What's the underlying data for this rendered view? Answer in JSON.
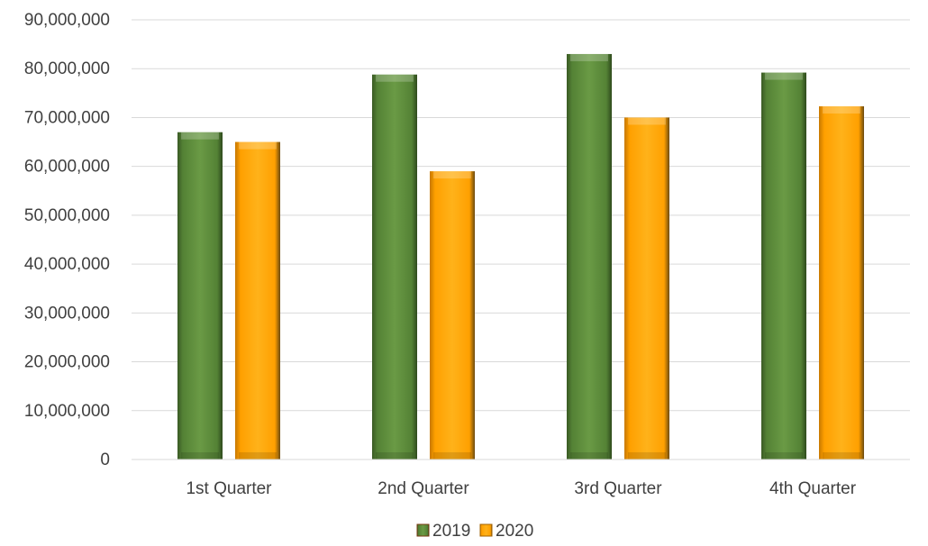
{
  "chart_data": {
    "type": "bar",
    "categories": [
      "1st Quarter",
      "2nd Quarter",
      "3rd Quarter",
      "4th Quarter"
    ],
    "series": [
      {
        "name": "2019",
        "values": [
          67000000,
          78800000,
          83000000,
          79200000
        ],
        "color": "#548235"
      },
      {
        "name": "2020",
        "values": [
          65000000,
          59000000,
          70000000,
          72300000
        ],
        "color": "#FFA000"
      }
    ],
    "title": "",
    "xlabel": "",
    "ylabel": "",
    "ylim": [
      0,
      90000000
    ],
    "yticks": [
      "0",
      "10,000,000",
      "20,000,000",
      "30,000,000",
      "40,000,000",
      "50,000,000",
      "60,000,000",
      "70,000,000",
      "80,000,000",
      "90,000,000"
    ],
    "grid": true,
    "legend_position": "bottom"
  }
}
